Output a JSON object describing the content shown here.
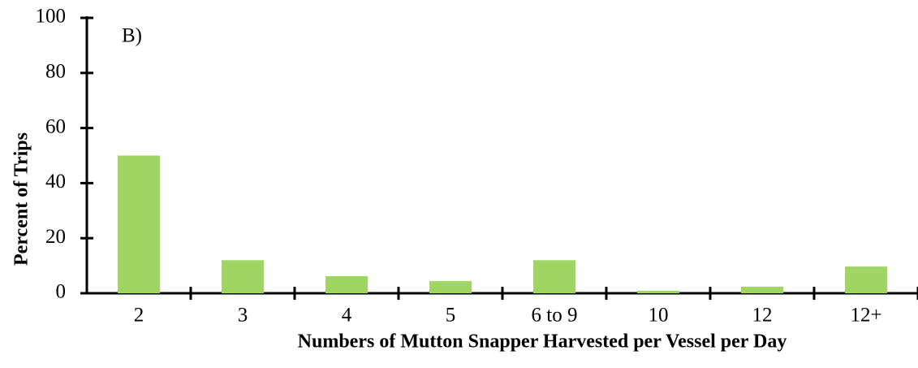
{
  "chart_data": {
    "type": "bar",
    "annotation": "B)",
    "x_label": "Numbers of Mutton Snapper Harvested per Vessel per Day",
    "y_label": "Percent of Trips",
    "categories": [
      "2",
      "3",
      "4",
      "5",
      "6 to 9",
      "10",
      "12",
      "12+"
    ],
    "values": [
      50,
      12,
      6.2,
      4.4,
      12,
      0.9,
      2.4,
      9.7
    ],
    "color": "#9fd562",
    "ylim": [
      0,
      100
    ],
    "yticks": [
      0,
      20,
      40,
      60,
      80,
      100
    ],
    "grid": false
  }
}
